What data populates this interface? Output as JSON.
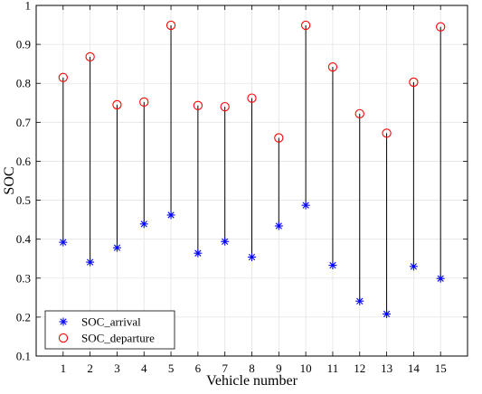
{
  "chart_data": {
    "type": "scatter",
    "title": "",
    "xlabel": "Vehicle number",
    "ylabel": "SOC",
    "xlim": [
      0,
      16
    ],
    "ylim": [
      0.1,
      1
    ],
    "x_ticks": [
      1,
      2,
      3,
      4,
      5,
      6,
      7,
      8,
      9,
      10,
      11,
      12,
      13,
      14,
      15
    ],
    "y_ticks": [
      0.1,
      0.2,
      0.3,
      0.4,
      0.5,
      0.6,
      0.7,
      0.8,
      0.9,
      1
    ],
    "y_tick_labels": [
      "0.1",
      "0.2",
      "0.3",
      "0.4",
      "0.5",
      "0.6",
      "0.7",
      "0.8",
      "0.9",
      "1"
    ],
    "grid": true,
    "legend_position": "bottom-left",
    "connector_lines": true,
    "series": [
      {
        "name": "SOC_arrival",
        "marker": "asterisk",
        "color": "#0000ff",
        "x": [
          1,
          2,
          3,
          4,
          5,
          6,
          7,
          8,
          9,
          10,
          11,
          12,
          13,
          14,
          15
        ],
        "values": [
          0.392,
          0.341,
          0.378,
          0.439,
          0.462,
          0.364,
          0.394,
          0.354,
          0.434,
          0.487,
          0.333,
          0.241,
          0.208,
          0.33,
          0.299
        ]
      },
      {
        "name": "SOC_departure",
        "marker": "circle",
        "color": "#ff0000",
        "x": [
          1,
          2,
          3,
          4,
          5,
          6,
          7,
          8,
          9,
          10,
          11,
          12,
          13,
          14,
          15
        ],
        "values": [
          0.815,
          0.868,
          0.745,
          0.752,
          0.949,
          0.743,
          0.74,
          0.762,
          0.66,
          0.949,
          0.842,
          0.722,
          0.672,
          0.803,
          0.945
        ]
      }
    ]
  }
}
